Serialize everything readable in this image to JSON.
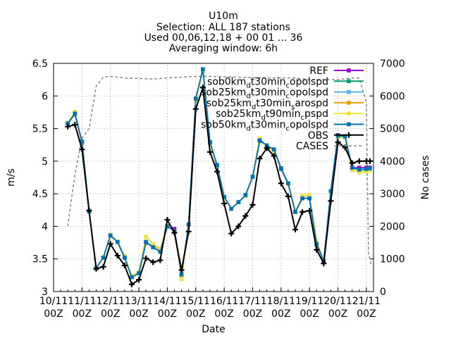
{
  "chart_data": {
    "type": "line",
    "title": "U10m",
    "subtitle": [
      "Selection: ALL    187 stations",
      "Used 00,06,12,18 + 00 01 ... 36",
      "Averaging window:  6h"
    ],
    "xlabel": "Date",
    "ylabel": "m/s",
    "y2label": "No cases",
    "xlim": [
      0,
      45
    ],
    "ylim": [
      3,
      6.5
    ],
    "y2lim": [
      0,
      7000
    ],
    "xticks": [
      {
        "x": 0,
        "label": [
          "10/11",
          "00Z"
        ]
      },
      {
        "x": 4,
        "label": [
          "11/11",
          "00Z"
        ]
      },
      {
        "x": 8,
        "label": [
          "12/11",
          "00Z"
        ]
      },
      {
        "x": 12,
        "label": [
          "13/11",
          "00Z"
        ]
      },
      {
        "x": 16,
        "label": [
          "14/11",
          "00Z"
        ]
      },
      {
        "x": 20,
        "label": [
          "15/11",
          "00Z"
        ]
      },
      {
        "x": 24,
        "label": [
          "16/11",
          "00Z"
        ]
      },
      {
        "x": 28,
        "label": [
          "17/11",
          "00Z"
        ]
      },
      {
        "x": 32,
        "label": [
          "18/11",
          "00Z"
        ]
      },
      {
        "x": 36,
        "label": [
          "19/11",
          "00Z"
        ]
      },
      {
        "x": 40,
        "label": [
          "20/11",
          "00Z"
        ]
      },
      {
        "x": 44,
        "label": [
          "21/11",
          "00Z"
        ]
      }
    ],
    "yticks": [
      "3",
      "3.5",
      "4",
      "4.5",
      "5",
      "5.5",
      "6",
      "6.5"
    ],
    "y2ticks": [
      "0",
      "1000",
      "2000",
      "3000",
      "4000",
      "5000",
      "6000",
      "7000"
    ],
    "legend_position": "top-right",
    "x": [
      2,
      3,
      4,
      5,
      6,
      7,
      8,
      9,
      10,
      11,
      12,
      13,
      14,
      15,
      16,
      17,
      18,
      19,
      20,
      21,
      22,
      23,
      24,
      25,
      26,
      27,
      28,
      29,
      30,
      31,
      32,
      33,
      34,
      35,
      36,
      37,
      38,
      39,
      40,
      41,
      42,
      43,
      44,
      44.5
    ],
    "series": [
      {
        "name": "REF",
        "color": "#9400d3",
        "marker": "square",
        "values": [
          5.58,
          5.72,
          5.28,
          4.23,
          3.36,
          3.52,
          3.86,
          3.76,
          3.52,
          3.22,
          3.28,
          3.75,
          3.68,
          3.61,
          4.01,
          3.96,
          3.28,
          4.02,
          5.95,
          6.4,
          5.28,
          4.93,
          4.45,
          4.27,
          4.37,
          4.47,
          4.76,
          5.31,
          5.24,
          5.17,
          4.88,
          4.65,
          4.22,
          4.43,
          4.43,
          3.72,
          3.47,
          4.54,
          5.4,
          5.37,
          4.9,
          4.9,
          4.9,
          4.9
        ]
      },
      {
        "name": "sob0km_{d}t30min_{c}opolspd",
        "color": "#009e73",
        "marker": "square",
        "values": [
          5.58,
          5.73,
          5.3,
          4.24,
          3.36,
          3.52,
          3.87,
          3.76,
          3.52,
          3.22,
          3.28,
          3.76,
          3.68,
          3.61,
          4.0,
          3.93,
          3.27,
          4.02,
          5.96,
          6.41,
          5.29,
          4.93,
          4.45,
          4.27,
          4.37,
          4.47,
          4.76,
          5.31,
          5.24,
          5.18,
          4.88,
          4.66,
          4.22,
          4.43,
          4.43,
          3.73,
          3.47,
          4.54,
          5.39,
          5.37,
          4.9,
          4.87,
          4.87,
          4.88
        ]
      },
      {
        "name": "sob25km_{d}t30min_{c}opolspd",
        "color": "#56b4e9",
        "marker": "square",
        "values": [
          5.59,
          5.73,
          5.3,
          4.24,
          3.36,
          3.52,
          3.86,
          3.76,
          3.52,
          3.22,
          3.28,
          3.76,
          3.68,
          3.61,
          4.0,
          3.93,
          3.26,
          4.03,
          5.96,
          6.41,
          5.29,
          4.94,
          4.45,
          4.27,
          4.37,
          4.48,
          4.76,
          5.32,
          5.24,
          5.18,
          4.89,
          4.66,
          4.22,
          4.43,
          4.43,
          3.73,
          3.47,
          4.54,
          5.39,
          5.38,
          4.9,
          4.87,
          4.87,
          4.88
        ]
      },
      {
        "name": "sob25km_{d}t30min_{s}arospd",
        "color": "#e69f00",
        "marker": "square",
        "values": [
          5.59,
          5.74,
          5.29,
          4.23,
          3.35,
          3.52,
          3.86,
          3.77,
          3.54,
          3.24,
          3.29,
          3.84,
          3.72,
          3.64,
          4.02,
          3.93,
          3.2,
          4.02,
          5.94,
          6.39,
          5.27,
          4.92,
          4.45,
          4.27,
          4.37,
          4.47,
          4.76,
          5.34,
          5.22,
          5.17,
          4.89,
          4.65,
          4.22,
          4.47,
          4.47,
          3.77,
          3.47,
          4.5,
          5.37,
          5.36,
          4.86,
          4.83,
          4.85,
          4.87
        ]
      },
      {
        "name": "sob25km_{d}t90min_{c}pspd",
        "color": "#f0e442",
        "marker": "square",
        "values": [
          5.59,
          5.76,
          5.29,
          4.23,
          3.35,
          3.52,
          3.87,
          3.77,
          3.54,
          3.24,
          3.3,
          3.84,
          3.73,
          3.66,
          4.02,
          3.93,
          3.19,
          4.02,
          5.93,
          6.38,
          5.27,
          4.92,
          4.44,
          4.27,
          4.37,
          4.47,
          4.76,
          5.35,
          5.21,
          5.16,
          4.89,
          4.65,
          4.22,
          4.47,
          4.48,
          3.77,
          3.47,
          4.5,
          5.37,
          5.36,
          4.86,
          4.83,
          4.84,
          4.86
        ]
      },
      {
        "name": "sob50km_{d}t30min_{c}opolspd",
        "color": "#0072b2",
        "marker": "square",
        "values": [
          5.58,
          5.73,
          5.3,
          4.23,
          3.36,
          3.52,
          3.86,
          3.76,
          3.52,
          3.22,
          3.28,
          3.76,
          3.68,
          3.61,
          4.0,
          3.93,
          3.26,
          4.03,
          5.96,
          6.41,
          5.29,
          4.94,
          4.45,
          4.27,
          4.37,
          4.48,
          4.76,
          5.32,
          5.24,
          5.18,
          4.89,
          4.66,
          4.22,
          4.43,
          4.43,
          3.73,
          3.47,
          4.54,
          5.39,
          5.38,
          4.9,
          4.87,
          4.88,
          4.89
        ]
      },
      {
        "name": "OBS",
        "color": "#000000",
        "marker": "plus",
        "values": [
          5.53,
          5.56,
          5.18,
          4.24,
          3.35,
          3.38,
          3.73,
          3.55,
          3.4,
          3.11,
          3.18,
          3.51,
          3.45,
          3.48,
          4.1,
          3.9,
          3.33,
          3.92,
          5.8,
          6.13,
          5.14,
          4.84,
          4.35,
          3.89,
          4.0,
          4.16,
          4.33,
          5.04,
          5.2,
          5.08,
          4.66,
          4.46,
          3.95,
          4.22,
          4.24,
          3.64,
          3.43,
          4.39,
          5.29,
          5.21,
          4.97,
          5.0,
          5.0,
          5.0
        ]
      }
    ],
    "cases": {
      "name": "CASES",
      "color": "#888888",
      "style": "dashed",
      "axis": "y2",
      "x": [
        2,
        3,
        4,
        5,
        6,
        7,
        8,
        10,
        14,
        18,
        20,
        22,
        24,
        30,
        34,
        36,
        38,
        40,
        42,
        43,
        44,
        44.3,
        44.7
      ],
      "values": [
        2000,
        3600,
        4700,
        5000,
        6300,
        6580,
        6600,
        6550,
        6520,
        6580,
        6600,
        6600,
        6590,
        6550,
        6550,
        6500,
        6500,
        6500,
        6550,
        6550,
        5800,
        1200,
        800
      ]
    }
  }
}
